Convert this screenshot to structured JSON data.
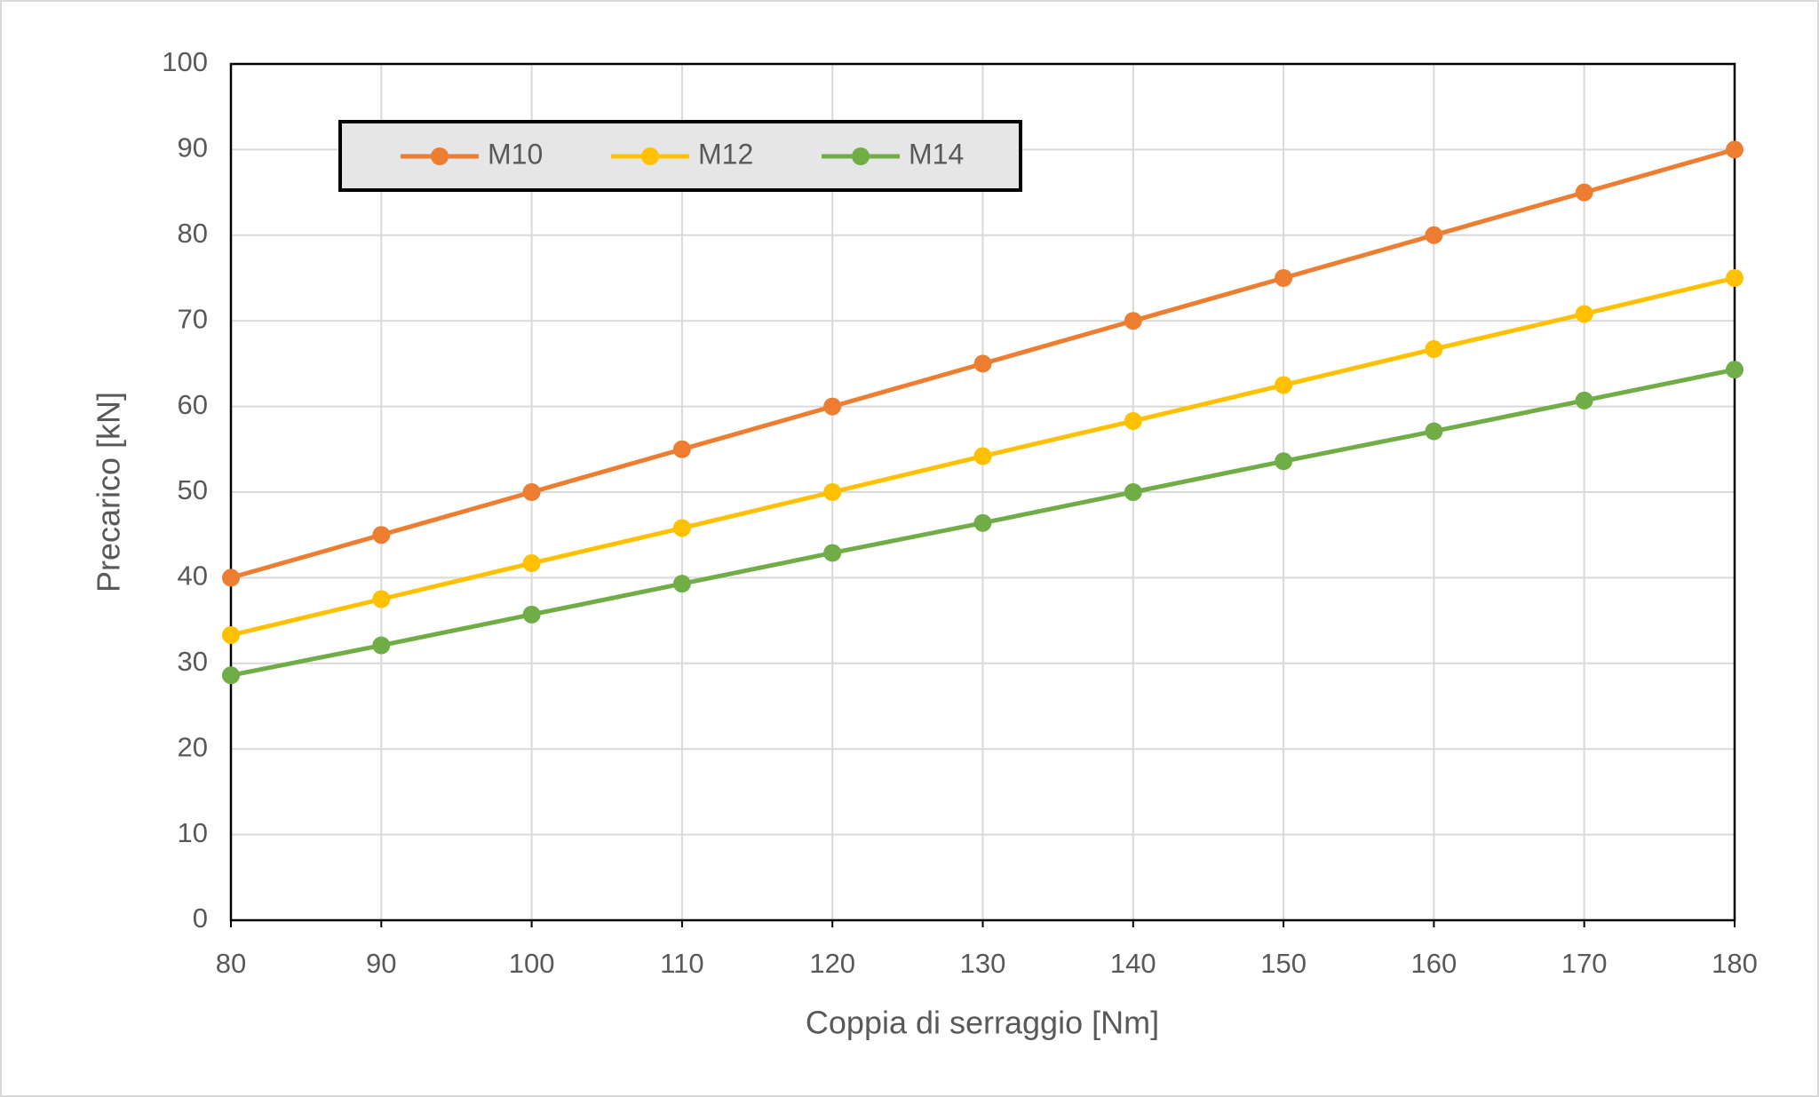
{
  "chart_data": {
    "type": "line",
    "xlabel": "Coppia di serraggio [Nm]",
    "ylabel": "Precarico [kN]",
    "x": [
      80,
      90,
      100,
      110,
      120,
      130,
      140,
      150,
      160,
      170,
      180
    ],
    "series": [
      {
        "name": "M10",
        "color": "#ed7d31",
        "values": [
          40,
          45,
          50,
          55,
          60,
          65,
          70,
          75,
          80,
          85,
          90
        ]
      },
      {
        "name": "M12",
        "color": "#ffc000",
        "values": [
          33.3,
          37.5,
          41.7,
          45.8,
          50,
          54.2,
          58.3,
          62.5,
          66.7,
          70.8,
          75
        ]
      },
      {
        "name": "M14",
        "color": "#70ad47",
        "values": [
          28.6,
          32.1,
          35.7,
          39.3,
          42.9,
          46.4,
          50,
          53.6,
          57.1,
          60.7,
          64.3
        ]
      }
    ],
    "xlim": [
      80,
      180
    ],
    "xticks": [
      80,
      90,
      100,
      110,
      120,
      130,
      140,
      150,
      160,
      170,
      180
    ],
    "ylim": [
      0,
      100
    ],
    "yticks": [
      0,
      10,
      20,
      30,
      40,
      50,
      60,
      70,
      80,
      90,
      100
    ],
    "grid": true,
    "legend": "top-left"
  }
}
